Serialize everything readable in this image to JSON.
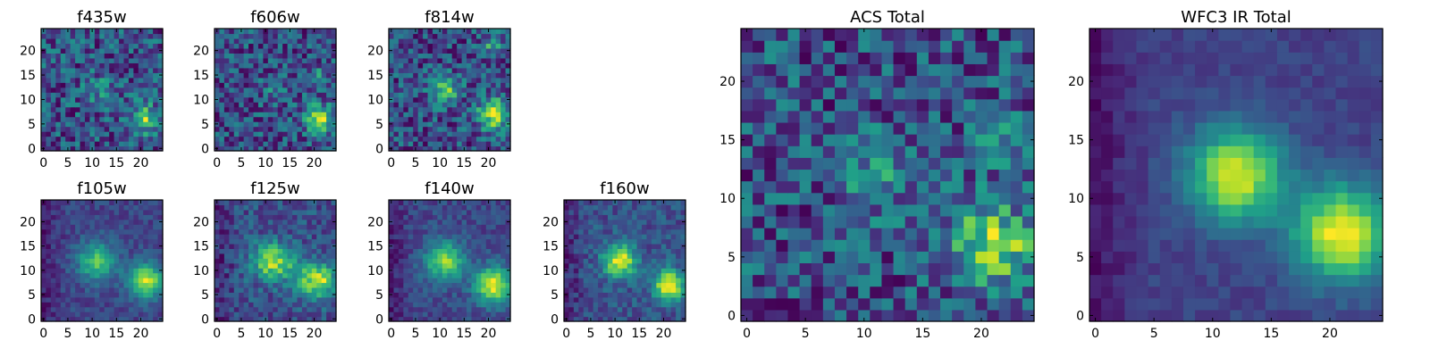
{
  "colormap": "viridis",
  "chart_data": [
    {
      "type": "heatmap",
      "title": "f435w",
      "grid": [
        25,
        25
      ],
      "xticks": [
        0,
        5,
        10,
        15,
        20
      ],
      "yticks": [
        0,
        5,
        10,
        15,
        20
      ],
      "noise": 0.28,
      "blobs": [
        {
          "x": 21,
          "y": 6,
          "amp": 0.55,
          "s": 2.0
        },
        {
          "x": 12,
          "y": 12,
          "amp": 0.2,
          "s": 2.5
        }
      ],
      "seed": 11
    },
    {
      "type": "heatmap",
      "title": "f606w",
      "grid": [
        25,
        25
      ],
      "xticks": [
        0,
        5,
        10,
        15,
        20
      ],
      "yticks": [
        0,
        5,
        10,
        15,
        20
      ],
      "noise": 0.22,
      "blobs": [
        {
          "x": 21,
          "y": 6,
          "amp": 0.6,
          "s": 2.0
        },
        {
          "x": 21,
          "y": 15,
          "amp": 0.3,
          "s": 1.2
        },
        {
          "x": 12,
          "y": 12,
          "amp": 0.15,
          "s": 2.0
        }
      ],
      "seed": 23
    },
    {
      "type": "heatmap",
      "title": "f814w",
      "grid": [
        25,
        25
      ],
      "xticks": [
        0,
        5,
        10,
        15,
        20
      ],
      "yticks": [
        0,
        5,
        10,
        15,
        20
      ],
      "noise": 0.22,
      "blobs": [
        {
          "x": 21,
          "y": 7,
          "amp": 0.6,
          "s": 2.2
        },
        {
          "x": 11,
          "y": 12,
          "amp": 0.45,
          "s": 2.0
        },
        {
          "x": 21,
          "y": 21,
          "amp": 0.3,
          "s": 1.5
        }
      ],
      "seed": 37
    },
    {
      "type": "heatmap",
      "title": "f105w",
      "grid": [
        25,
        25
      ],
      "xticks": [
        0,
        5,
        10,
        15,
        20
      ],
      "yticks": [
        0,
        5,
        10,
        15,
        20
      ],
      "noise": 0.1,
      "blobs": [
        {
          "x": 21,
          "y": 8,
          "amp": 0.75,
          "s": 2.5
        },
        {
          "x": 11,
          "y": 12,
          "amp": 0.55,
          "s": 2.8
        }
      ],
      "seed": 41
    },
    {
      "type": "heatmap",
      "title": "f125w",
      "grid": [
        25,
        25
      ],
      "xticks": [
        0,
        5,
        10,
        15,
        20
      ],
      "yticks": [
        0,
        5,
        10,
        15,
        20
      ],
      "noise": 0.14,
      "blobs": [
        {
          "x": 21,
          "y": 8,
          "amp": 0.6,
          "s": 2.5
        },
        {
          "x": 11,
          "y": 12,
          "amp": 0.55,
          "s": 2.6
        },
        {
          "x": 16,
          "y": 10,
          "amp": 0.2,
          "s": 2.5
        }
      ],
      "seed": 53
    },
    {
      "type": "heatmap",
      "title": "f140w",
      "grid": [
        25,
        25
      ],
      "xticks": [
        0,
        5,
        10,
        15,
        20
      ],
      "yticks": [
        0,
        5,
        10,
        15,
        20
      ],
      "noise": 0.1,
      "blobs": [
        {
          "x": 21,
          "y": 7,
          "amp": 0.75,
          "s": 2.6
        },
        {
          "x": 11,
          "y": 12,
          "amp": 0.6,
          "s": 2.8
        }
      ],
      "seed": 67
    },
    {
      "type": "heatmap",
      "title": "f160w",
      "grid": [
        25,
        25
      ],
      "xticks": [
        0,
        5,
        10,
        15,
        20
      ],
      "yticks": [
        0,
        5,
        10,
        15,
        20
      ],
      "noise": 0.12,
      "blobs": [
        {
          "x": 21,
          "y": 7,
          "amp": 0.7,
          "s": 2.2
        },
        {
          "x": 11,
          "y": 12,
          "amp": 0.65,
          "s": 2.4
        }
      ],
      "seed": 79
    },
    {
      "type": "heatmap",
      "title": "ACS Total",
      "grid": [
        25,
        25
      ],
      "xticks": [
        0,
        5,
        10,
        15,
        20
      ],
      "yticks": [
        0,
        5,
        10,
        15,
        20
      ],
      "noise": 0.25,
      "blobs": [
        {
          "x": 21,
          "y": 6,
          "amp": 0.6,
          "s": 2.3
        },
        {
          "x": 11,
          "y": 12,
          "amp": 0.25,
          "s": 2.0
        },
        {
          "x": 21,
          "y": 15,
          "amp": 0.2,
          "s": 1.5
        }
      ],
      "seed": 97
    },
    {
      "type": "heatmap",
      "title": "WFC3 IR Total",
      "grid": [
        25,
        25
      ],
      "xticks": [
        0,
        5,
        10,
        15,
        20
      ],
      "yticks": [
        0,
        5,
        10,
        15,
        20
      ],
      "noise": 0.05,
      "blobs": [
        {
          "x": 21,
          "y": 7,
          "amp": 0.7,
          "s": 2.8
        },
        {
          "x": 12,
          "y": 12,
          "amp": 0.65,
          "s": 2.8
        }
      ],
      "seed": 113
    }
  ]
}
